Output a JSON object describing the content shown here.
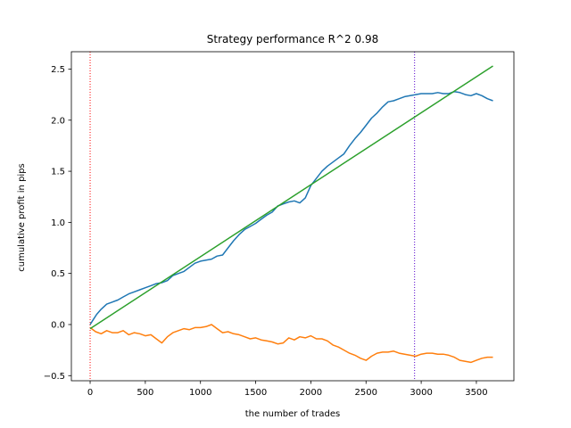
{
  "chart_data": {
    "type": "line",
    "title": "Strategy performance R^2 0.98",
    "xlabel": "the number of trades",
    "ylabel": "cumulative profit in pips",
    "xlim": [
      -170,
      3840
    ],
    "ylim": [
      -0.55,
      2.67
    ],
    "x_ticks": [
      0,
      500,
      1000,
      1500,
      2000,
      2500,
      3000,
      3500
    ],
    "x_tick_labels": [
      "0",
      "500",
      "1000",
      "1500",
      "2000",
      "2500",
      "3000",
      "3500"
    ],
    "y_ticks": [
      -0.5,
      0.0,
      0.5,
      1.0,
      1.5,
      2.0,
      2.5
    ],
    "y_tick_labels": [
      "−0.5",
      "0.0",
      "0.5",
      "1.0",
      "1.5",
      "2.0",
      "2.5"
    ],
    "grid": false,
    "legend": "none",
    "series": [
      {
        "color": "#1f77b4",
        "x": [
          0,
          30,
          60,
          100,
          150,
          200,
          250,
          300,
          350,
          400,
          450,
          500,
          550,
          600,
          650,
          700,
          750,
          800,
          850,
          900,
          950,
          1000,
          1050,
          1100,
          1150,
          1200,
          1250,
          1300,
          1350,
          1400,
          1450,
          1500,
          1550,
          1600,
          1650,
          1700,
          1750,
          1800,
          1850,
          1900,
          1950,
          2000,
          2050,
          2100,
          2150,
          2200,
          2250,
          2300,
          2350,
          2400,
          2450,
          2500,
          2550,
          2600,
          2650,
          2700,
          2750,
          2800,
          2850,
          2900,
          2950,
          3000,
          3050,
          3100,
          3150,
          3200,
          3250,
          3300,
          3350,
          3400,
          3450,
          3500,
          3550,
          3600,
          3650
        ],
        "y": [
          0.0,
          0.05,
          0.1,
          0.15,
          0.2,
          0.22,
          0.24,
          0.27,
          0.3,
          0.32,
          0.34,
          0.36,
          0.38,
          0.4,
          0.41,
          0.43,
          0.48,
          0.5,
          0.52,
          0.56,
          0.6,
          0.62,
          0.63,
          0.64,
          0.67,
          0.68,
          0.75,
          0.82,
          0.88,
          0.93,
          0.96,
          0.99,
          1.03,
          1.07,
          1.1,
          1.16,
          1.18,
          1.2,
          1.21,
          1.19,
          1.24,
          1.36,
          1.43,
          1.5,
          1.55,
          1.59,
          1.63,
          1.67,
          1.75,
          1.82,
          1.88,
          1.95,
          2.02,
          2.07,
          2.13,
          2.18,
          2.19,
          2.21,
          2.23,
          2.24,
          2.25,
          2.26,
          2.26,
          2.26,
          2.27,
          2.26,
          2.26,
          2.28,
          2.27,
          2.25,
          2.24,
          2.26,
          2.24,
          2.21,
          2.19
        ]
      },
      {
        "color": "#ff7f0e",
        "x": [
          0,
          50,
          100,
          150,
          200,
          250,
          300,
          350,
          400,
          450,
          500,
          550,
          600,
          650,
          700,
          750,
          800,
          850,
          900,
          950,
          1000,
          1050,
          1100,
          1150,
          1200,
          1250,
          1300,
          1350,
          1400,
          1450,
          1500,
          1550,
          1600,
          1650,
          1700,
          1750,
          1800,
          1850,
          1900,
          1950,
          2000,
          2050,
          2100,
          2150,
          2200,
          2250,
          2300,
          2350,
          2400,
          2450,
          2500,
          2550,
          2600,
          2650,
          2700,
          2750,
          2800,
          2850,
          2900,
          2950,
          3000,
          3050,
          3100,
          3150,
          3200,
          3250,
          3300,
          3350,
          3400,
          3450,
          3500,
          3550,
          3600,
          3650
        ],
        "y": [
          -0.03,
          -0.07,
          -0.09,
          -0.06,
          -0.08,
          -0.08,
          -0.06,
          -0.1,
          -0.08,
          -0.09,
          -0.11,
          -0.1,
          -0.14,
          -0.18,
          -0.12,
          -0.08,
          -0.06,
          -0.04,
          -0.05,
          -0.03,
          -0.03,
          -0.02,
          0.0,
          -0.04,
          -0.08,
          -0.07,
          -0.09,
          -0.1,
          -0.12,
          -0.14,
          -0.13,
          -0.15,
          -0.16,
          -0.17,
          -0.19,
          -0.18,
          -0.13,
          -0.15,
          -0.12,
          -0.13,
          -0.11,
          -0.14,
          -0.14,
          -0.16,
          -0.2,
          -0.22,
          -0.25,
          -0.28,
          -0.3,
          -0.33,
          -0.35,
          -0.31,
          -0.28,
          -0.27,
          -0.27,
          -0.26,
          -0.28,
          -0.29,
          -0.3,
          -0.31,
          -0.29,
          -0.28,
          -0.28,
          -0.29,
          -0.29,
          -0.3,
          -0.32,
          -0.35,
          -0.36,
          -0.37,
          -0.35,
          -0.33,
          -0.32,
          -0.32
        ]
      },
      {
        "color": "#2ca02c",
        "x": [
          0,
          3650
        ],
        "y": [
          -0.04,
          2.53
        ]
      }
    ],
    "vlines": [
      {
        "x": 0,
        "color": "#ff0000",
        "style": "dotted"
      },
      {
        "x": 2940,
        "color": "#5500cc",
        "style": "dotted"
      }
    ]
  }
}
